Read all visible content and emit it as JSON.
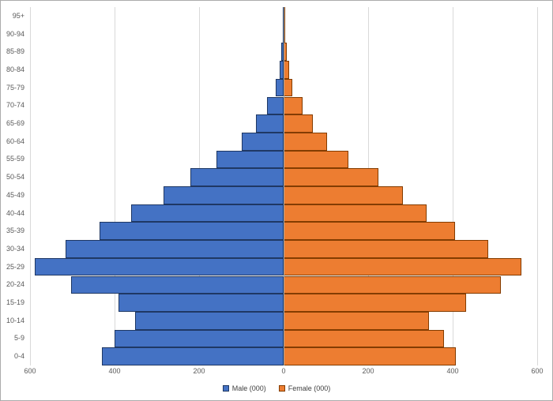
{
  "chart_data": {
    "type": "bar",
    "subtype": "population-pyramid",
    "orientation": "horizontal",
    "title": "",
    "categories": [
      "0-4",
      "5-9",
      "10-14",
      "15-19",
      "20-24",
      "25-29",
      "30-34",
      "35-39",
      "40-44",
      "45-49",
      "50-54",
      "55-59",
      "60-64",
      "65-69",
      "70-74",
      "75-79",
      "80-84",
      "85-89",
      "90-94",
      "95+"
    ],
    "series": [
      {
        "name": "Male (000)",
        "side": "left",
        "color": "#4472C4",
        "border_color": "#1F3864",
        "values": [
          430,
          400,
          351,
          390,
          503,
          589,
          516,
          435,
          361,
          284,
          220,
          159,
          99,
          66,
          40,
          19,
          10,
          5,
          2,
          1
        ]
      },
      {
        "name": "Female (000)",
        "side": "right",
        "color": "#ED7D31",
        "border_color": "#833C00",
        "values": [
          408,
          380,
          344,
          431,
          514,
          563,
          484,
          406,
          338,
          282,
          224,
          153,
          103,
          69,
          44,
          21,
          13,
          7,
          3,
          1
        ]
      }
    ],
    "x_axis": {
      "tick_labels": [
        "600",
        "400",
        "200",
        "0",
        "200",
        "400",
        "600"
      ],
      "tick_values": [
        -600,
        -400,
        -200,
        0,
        200,
        400,
        600
      ],
      "max_abs": 600,
      "gridline_step": 200
    },
    "legend_position": "bottom",
    "grid": true,
    "colors": {
      "gridline": "#D9D9D9",
      "axis_line": "#A6A6A6",
      "tick_text": "#595959",
      "legend_text": "#404040",
      "background": "#FFFFFF"
    }
  }
}
